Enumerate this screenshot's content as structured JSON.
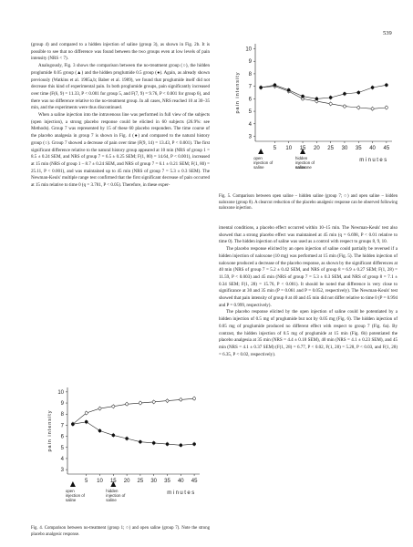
{
  "page_number": "539",
  "left_column": [
    "(group 4) and compared to a hidden injection of saline (group 3), as shown in Fig. 2b. It is possible to see that no difference was found between the two groups even at low levels of pain intensity (NRS < 7).",
    "Analogously, Fig. 3 shows the comparison between the no-treatment group (○), the hidden proglumide 0.05 group (▲) and the hidden proglumide 0.5 group (●). Again, as already shown previously (Watkins et al. 1985a,b; Baber et al. 1989), we found that proglumide itself did not decrease this kind of experimental pain. In both proglumide groups, pain significantly increased over time (F(6, 9) = 11.33, P < 0.001 for group 5, and F(7, 9) = 9.76, P < 0.001 for group 6), and there was no difference relative to the no-treatment group. In all cases, NRS reached 10 at 30–35 min, and the experiments were thus discontinued.",
    "When a saline injection into the intravenous line was performed in full view of the subjects (open injection), a strong placebo response could be elicited in 60 subjects (26.9%: see Methods). Group 7 was represented by 15 of these 60 placebo responders. The time course of the placebo analgesia in group 7 is shown in Fig. 4 (●) and compared to the natural history group (○). Group 7 showed a decrease of pain over time (F(9, 14) = 13.43, P < 0.001). The first significant difference relative to the natural history group appeared at 10 min (NRS of group 1 = 8.5 ± 0.24 SEM, and NRS of group 7 = 6.5 ± 0.25 SEM; F(1, 80) = 14.64, P < 0.001), increased at 15 min (NRS of group 1 – 8.7 ± 0.24 SEM, and NRS of group 7 = 6.1 ± 0.21 SEM; F(1, 80) = 25.11, P < 0.001), and was maintained up to 45 min (NRS of group 7 = 5.3 ± 0.3 SEM). The Newman-Keuls' multiple range test confirmed that the first significant decrease of pain occurred at 15 min relative to time 0 (q = 3.781, P < 0.05). Therefore, in these exper-"
  ],
  "right_column": [
    "imental conditions, a placebo effect occurred within 10–15 min. The Newman-Keuls' test also showed that a strong placebo effect was maintained at 45 min (q = 6.698, P < 0.01 relative to time 0). The hidden injection of saline was used as a control with respect to groups 8, 9, 10.",
    "The placebo response elicited by an open injection of saline could partially be reversed if a hidden injection of naloxone (10 mg) was performed at 15 min (Fig. 5). The hidden injection of naloxone produced a decrease of the placebo response, as shown by the significant differences at 40 min (NRS of group 7 = 5.2 ± 0.42 SEM, and NRS of group 8 = 6.9 ± 0.27 SEM; F(1, 28) = 11.59, P < 0.003) and 45 min (NRS of group 7 = 5.3 ± 0.3 SEM, and NRS of group 8 = 7.1 ± 0.34 SEM; F(1, 28) = 15.76, P < 0.001). It should be noted that difference is very close to significance at 30 and 35 min (P = 0.061 and P = 0.052, respectively). The Newman-Keuls' test showed that pain intensity of group 8 at 40 and 45 min did not differ relative to time 0 (P = 0.994 and P = 0.999, respectively).",
    "The placebo response elicited by the open injection of saline could be potentiated by a hidden injection of 0.5 mg of proglumide but not by 0.05 mg (Fig. 6). The hidden injection of 0.05 mg of proglumide produced no different effect with respect to group 7 (Fig. 6a). By contrast, the hidden injection of 0.5 mg of proglumide at 15 min (Fig. 6b) potentiated the placebo analgesia at 35 min (NRS = 4.4 ± 0.18 SEM), 40 min (NRS = 4.1 ± 0.23 SEM), and 45 min (NRS = 4.1 ± 0.37 SEM) (F(1, 28) = 6.77, P < 0.02, F(1, 28) = 5.28, P < 0.03, and F(1, 28) = 6.35, P < 0.02, respectively)."
  ],
  "fig4": {
    "caption": "Fig. 4. Comparison between no-treatment (group 1; ○) and open saline (group 7). Note the strong placebo analgesic response.",
    "ylabel": "pain intensity",
    "xlabel": "minutes",
    "marker_labels": [
      "open injection of saline",
      "hidden injection of saline"
    ]
  },
  "fig5": {
    "caption": "Fig. 5. Comparison between open saline – hidden saline (group 7; ○) and open saline – hidden naloxone (group 8). A clearcut reduction of the placebo analgesic response can be observed following naloxone injection.",
    "ylabel": "pain intensity",
    "xlabel": "minutes",
    "marker_labels": [
      "open injection of saline",
      "hidden injection of saline",
      "naloxone"
    ]
  },
  "chart_data": [
    {
      "type": "line",
      "name_ref": "fig4",
      "x": [
        0,
        5,
        10,
        15,
        20,
        25,
        30,
        35,
        40,
        45
      ],
      "series": [
        {
          "marker": "open-circle",
          "values": [
            7.1,
            8.1,
            8.5,
            8.7,
            8.9,
            9.0,
            9.1,
            9.2,
            9.3,
            9.4
          ]
        },
        {
          "marker": "filled-circle",
          "values": [
            7.1,
            7.3,
            6.5,
            6.1,
            5.8,
            5.5,
            5.4,
            5.3,
            5.2,
            5.3
          ]
        }
      ],
      "xticks": [
        5,
        10,
        15,
        20,
        25,
        30,
        35,
        40,
        45
      ],
      "yticks": [
        3,
        4,
        5,
        6,
        7,
        8,
        9,
        10
      ],
      "ylim": [
        2.6,
        10.4
      ],
      "xlim": [
        -2,
        47
      ]
    },
    {
      "type": "line",
      "name_ref": "fig5",
      "x": [
        0,
        5,
        10,
        15,
        20,
        25,
        30,
        35,
        40,
        45
      ],
      "series": [
        {
          "marker": "open-circle",
          "values": [
            6.9,
            7.0,
            6.6,
            6.0,
            5.8,
            5.6,
            5.4,
            5.3,
            5.2,
            5.3
          ]
        },
        {
          "marker": "filled-circle",
          "values": [
            6.9,
            7.1,
            6.7,
            6.2,
            6.0,
            6.1,
            6.4,
            6.5,
            6.9,
            7.1
          ]
        }
      ],
      "xticks": [
        5,
        10,
        15,
        20,
        25,
        30,
        35,
        40,
        45
      ],
      "yticks": [
        3,
        4,
        5,
        6,
        7,
        8,
        9,
        10
      ],
      "ylim": [
        2.6,
        10.4
      ],
      "xlim": [
        -2,
        47
      ]
    }
  ]
}
